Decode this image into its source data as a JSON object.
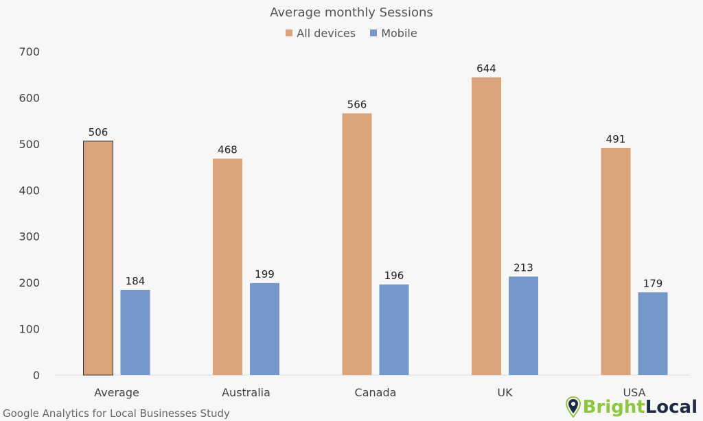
{
  "chart_data": {
    "type": "bar",
    "title": "Average monthly Sessions",
    "categories": [
      "Average",
      "Australia",
      "Canada",
      "UK",
      "USA"
    ],
    "series": [
      {
        "name": "All devices",
        "values": [
          506,
          468,
          566,
          644,
          491
        ],
        "color": "#d9a47b"
      },
      {
        "name": "Mobile",
        "values": [
          184,
          199,
          196,
          213,
          179
        ],
        "color": "#7597c9"
      }
    ],
    "ylim": [
      0,
      700
    ],
    "yticks": [
      0,
      100,
      200,
      300,
      400,
      500,
      600,
      700
    ],
    "grid": false,
    "legend": "top-center",
    "xlabel": "",
    "ylabel": ""
  },
  "footer": "Google Analytics for Local Businesses Study",
  "logo": {
    "part1": "Bright",
    "part2": "Local",
    "color1": "#8dc63f",
    "color2": "#1e2a44"
  }
}
